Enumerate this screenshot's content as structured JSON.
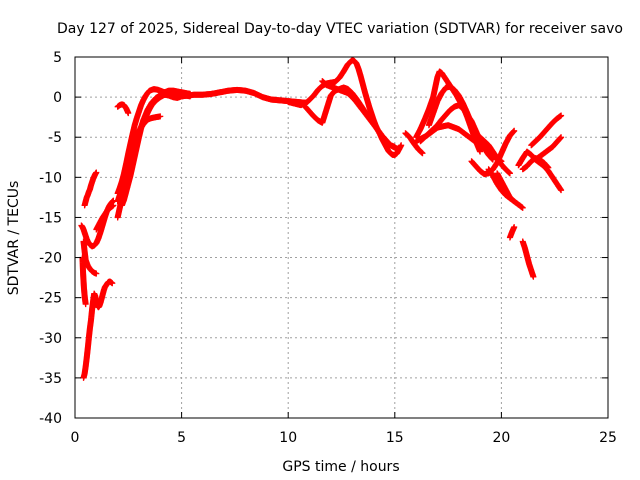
{
  "chart_data": {
    "type": "scatter",
    "title": "Day 127 of 2025, Sidereal Day-to-day VTEC variation (SDTVAR) for receiver savo",
    "xlabel": "GPS time / hours",
    "ylabel": "SDTVAR / TECUs",
    "xlim": [
      0,
      25
    ],
    "ylim": [
      -40,
      5
    ],
    "xticks": [
      0,
      5,
      10,
      15,
      20,
      25
    ],
    "yticks": [
      5,
      0,
      -5,
      -10,
      -15,
      -20,
      -25,
      -30,
      -35,
      -40
    ],
    "grid": true,
    "marker": "+",
    "color": "#ff0000",
    "series": [
      {
        "name": "trace-1",
        "x": [
          0.4,
          0.45,
          0.5,
          0.55,
          0.6,
          0.65,
          0.7,
          0.75,
          0.8,
          0.85,
          0.9,
          0.95,
          1.0,
          1.05,
          1.1,
          1.15,
          1.2,
          1.25,
          1.3,
          1.35,
          1.4,
          1.45,
          1.5,
          1.55,
          1.6,
          1.65,
          1.7,
          1.75
        ],
        "y": [
          -35.0,
          -34.5,
          -33.6,
          -32.5,
          -31.3,
          -30.0,
          -28.8,
          -27.8,
          -26.5,
          -25.4,
          -24.5,
          -24.8,
          -25.6,
          -26.0,
          -26.2,
          -26.0,
          -25.6,
          -25.1,
          -24.6,
          -24.1,
          -23.7,
          -23.5,
          -23.3,
          -23.1,
          -23.0,
          -23.0,
          -23.1,
          -23.2
        ]
      },
      {
        "name": "trace-2",
        "x": [
          0.35,
          0.38,
          0.42,
          0.46,
          0.5
        ],
        "y": [
          -20.0,
          -22.0,
          -23.8,
          -25.0,
          -25.8
        ]
      },
      {
        "name": "trace-3",
        "x": [
          0.4,
          0.45,
          0.5,
          0.6,
          0.7,
          0.8,
          0.9,
          1.0
        ],
        "y": [
          -18.0,
          -19.2,
          -20.3,
          -21.0,
          -21.4,
          -21.7,
          -21.9,
          -22.0
        ]
      },
      {
        "name": "trace-4",
        "x": [
          0.3,
          0.35,
          0.4,
          0.45,
          0.5,
          0.55,
          0.6,
          0.7,
          0.8,
          0.9,
          1.0,
          1.1,
          1.2,
          1.3,
          1.4,
          1.5,
          1.6,
          1.7,
          1.8
        ],
        "y": [
          -16.0,
          -16.2,
          -16.5,
          -16.9,
          -17.3,
          -17.7,
          -18.0,
          -18.4,
          -18.6,
          -18.5,
          -18.2,
          -17.6,
          -16.8,
          -15.9,
          -15.0,
          -14.2,
          -13.6,
          -13.2,
          -12.9
        ]
      },
      {
        "name": "trace-5",
        "x": [
          0.45,
          0.5,
          0.55,
          0.6,
          0.65,
          0.7,
          0.75,
          0.8,
          0.85,
          0.9,
          0.95,
          1.0
        ],
        "y": [
          -13.5,
          -13.0,
          -12.5,
          -12.2,
          -11.8,
          -11.5,
          -11.0,
          -10.6,
          -10.2,
          -9.9,
          -9.6,
          -9.4
        ]
      },
      {
        "name": "trace-6",
        "x": [
          1.0,
          1.1,
          1.2,
          1.3,
          1.4,
          1.5,
          1.6,
          1.7,
          1.8
        ],
        "y": [
          -16.5,
          -16.0,
          -15.5,
          -15.0,
          -14.6,
          -14.2,
          -13.9,
          -13.7,
          -13.5
        ]
      },
      {
        "name": "trace-7",
        "x": [
          2.0,
          2.1,
          2.2,
          2.3,
          2.4,
          2.5,
          2.6,
          2.7,
          2.8,
          2.9,
          3.0,
          3.1,
          3.2,
          3.3,
          3.4,
          3.5,
          3.7,
          3.9,
          4.1,
          4.3,
          4.5,
          4.7,
          5.0,
          5.3,
          5.6,
          6.0,
          6.4,
          6.8,
          7.2,
          7.6,
          8.0,
          8.4,
          8.8,
          9.2,
          9.6,
          10.0,
          10.4,
          10.8
        ],
        "y": [
          -12.0,
          -11.3,
          -10.5,
          -9.5,
          -8.3,
          -7.0,
          -5.8,
          -4.6,
          -3.5,
          -2.6,
          -1.8,
          -1.0,
          -0.4,
          0.1,
          0.5,
          0.8,
          1.0,
          0.9,
          0.7,
          0.5,
          0.3,
          0.2,
          0.1,
          0.2,
          0.3,
          0.3,
          0.4,
          0.6,
          0.8,
          0.9,
          0.8,
          0.5,
          0.0,
          -0.3,
          -0.4,
          -0.5,
          -0.6,
          -0.7
        ]
      },
      {
        "name": "trace-8",
        "x": [
          2.2,
          2.3,
          2.4,
          2.5,
          2.6,
          2.7,
          2.8,
          2.9,
          3.0,
          3.1,
          3.2,
          3.4,
          3.6,
          3.8,
          4.0,
          4.2,
          4.4,
          4.6,
          4.8,
          5.0,
          5.2,
          5.4
        ],
        "y": [
          -13.5,
          -12.8,
          -11.8,
          -10.8,
          -9.8,
          -8.6,
          -7.4,
          -6.2,
          -5.0,
          -3.9,
          -2.9,
          -1.6,
          -0.7,
          -0.1,
          0.2,
          0.3,
          0.2,
          0.0,
          -0.1,
          0.1,
          0.2,
          0.1
        ]
      },
      {
        "name": "trace-9",
        "x": [
          2.0,
          2.1,
          2.2,
          2.3,
          2.4,
          2.5,
          2.6,
          2.7,
          2.8,
          3.0,
          3.2,
          3.4,
          3.6,
          3.8,
          4.0,
          4.2,
          4.4,
          4.6,
          4.8,
          5.0,
          5.2,
          5.4
        ],
        "y": [
          -13.0,
          -12.2,
          -11.4,
          -10.5,
          -9.6,
          -8.8,
          -7.9,
          -7.0,
          -6.0,
          -4.4,
          -3.0,
          -1.9,
          -1.0,
          -0.4,
          0.0,
          0.3,
          0.4,
          0.4,
          0.3,
          0.2,
          0.2,
          0.2
        ]
      },
      {
        "name": "trace-10",
        "x": [
          2.3,
          2.4,
          2.5,
          2.6,
          2.7,
          2.8,
          2.9,
          3.0,
          3.1,
          3.2,
          3.3,
          3.4,
          3.5,
          3.6,
          3.8,
          4.0,
          4.2,
          4.4,
          4.6,
          4.8,
          5.0,
          5.2,
          5.4
        ],
        "y": [
          -10.5,
          -9.5,
          -8.5,
          -7.6,
          -6.6,
          -5.8,
          -5.0,
          -4.4,
          -3.8,
          -3.2,
          -2.6,
          -2.0,
          -1.4,
          -0.8,
          -0.2,
          0.3,
          0.6,
          0.8,
          0.8,
          0.7,
          0.6,
          0.5,
          0.4
        ]
      },
      {
        "name": "trace-11",
        "x": [
          2.0,
          2.1,
          2.2,
          2.3,
          2.4,
          2.5,
          2.6,
          2.7,
          2.8,
          2.9,
          3.0,
          3.2,
          3.4,
          3.6,
          3.8,
          4.0
        ],
        "y": [
          -15.0,
          -13.8,
          -12.6,
          -11.5,
          -10.2,
          -9.0,
          -7.8,
          -6.6,
          -5.6,
          -4.8,
          -4.2,
          -3.4,
          -2.8,
          -2.6,
          -2.5,
          -2.4
        ]
      },
      {
        "name": "trace-12",
        "x": [
          2.0,
          2.1,
          2.2,
          2.3,
          2.4,
          2.5
        ],
        "y": [
          -1.2,
          -1.0,
          -0.9,
          -1.0,
          -1.4,
          -2.0
        ]
      },
      {
        "name": "trace-13",
        "x": [
          10.0,
          10.3,
          10.6,
          10.9,
          11.2,
          11.4,
          11.6,
          11.8,
          12.0,
          12.2,
          12.4,
          12.6,
          12.8,
          13.0,
          13.1,
          13.2,
          13.3,
          13.4,
          13.5,
          13.6,
          13.7,
          13.8,
          13.9,
          14.0,
          14.1,
          14.2,
          14.3,
          14.4,
          14.5,
          14.6,
          14.7,
          14.8,
          14.9,
          15.0,
          15.1,
          15.2,
          15.3
        ],
        "y": [
          -0.6,
          -0.8,
          -1.0,
          -0.6,
          0.2,
          0.9,
          1.4,
          1.7,
          1.8,
          1.9,
          2.4,
          3.2,
          4.1,
          4.6,
          4.5,
          4.2,
          3.5,
          2.6,
          1.6,
          0.6,
          -0.3,
          -1.2,
          -2.0,
          -2.8,
          -3.5,
          -4.1,
          -4.6,
          -5.2,
          -5.7,
          -6.2,
          -6.7,
          -7.0,
          -7.2,
          -7.2,
          -7.0,
          -6.5,
          -6.0
        ]
      },
      {
        "name": "trace-14",
        "x": [
          10.8,
          11.0,
          11.2,
          11.4,
          11.6,
          11.8,
          12.0,
          12.2,
          12.4,
          12.6,
          12.8,
          13.0,
          13.2,
          13.4,
          13.6,
          13.8,
          14.0,
          14.2,
          14.4,
          14.6,
          14.8,
          15.0
        ],
        "y": [
          -1.2,
          -1.8,
          -2.4,
          -2.9,
          -3.2,
          -1.5,
          0.2,
          0.8,
          1.0,
          1.2,
          1.0,
          0.5,
          -0.2,
          -1.0,
          -1.8,
          -2.5,
          -3.3,
          -4.1,
          -4.8,
          -5.5,
          -6.0,
          -6.2
        ]
      },
      {
        "name": "trace-15",
        "x": [
          11.6,
          11.8,
          12.0,
          12.2,
          12.4,
          12.6,
          12.8,
          13.0,
          13.2,
          13.4,
          13.6,
          13.8,
          14.0,
          14.2,
          14.4,
          14.6,
          14.8,
          15.0,
          15.2
        ],
        "y": [
          2.0,
          1.5,
          1.3,
          1.1,
          0.9,
          0.7,
          0.5,
          0.0,
          -0.6,
          -1.3,
          -2.0,
          -2.7,
          -3.4,
          -4.1,
          -4.8,
          -5.4,
          -6.0,
          -6.3,
          -6.5
        ]
      },
      {
        "name": "trace-16",
        "x": [
          15.5,
          15.7,
          15.9,
          16.1,
          16.3
        ],
        "y": [
          -4.5,
          -5.0,
          -5.8,
          -6.5,
          -7.0
        ]
      },
      {
        "name": "trace-17",
        "x": [
          16.0,
          16.2,
          16.4,
          16.6,
          16.8,
          17.0,
          17.1,
          17.2,
          17.3,
          17.4,
          17.5,
          17.6,
          17.7,
          17.8,
          17.9,
          18.0,
          18.2,
          18.4,
          18.6,
          18.8,
          19.0
        ],
        "y": [
          -5.0,
          -4.0,
          -2.8,
          -1.5,
          0.0,
          2.5,
          3.2,
          3.0,
          2.6,
          2.2,
          1.8,
          1.4,
          1.0,
          0.6,
          0.2,
          -0.3,
          -1.2,
          -2.5,
          -4.0,
          -5.5,
          -6.8
        ]
      },
      {
        "name": "trace-18",
        "x": [
          16.6,
          16.8,
          17.0,
          17.2,
          17.4,
          17.6,
          17.8,
          18.0,
          18.2,
          18.4,
          18.6,
          18.8,
          19.0,
          19.2,
          19.4
        ],
        "y": [
          -3.5,
          -2.0,
          -0.5,
          0.5,
          1.2,
          1.3,
          0.9,
          0.2,
          -0.8,
          -2.0,
          -3.3,
          -4.6,
          -5.6,
          -6.3,
          -6.8
        ]
      },
      {
        "name": "trace-19",
        "x": [
          16.2,
          16.4,
          16.6,
          16.8,
          17.0,
          17.2,
          17.4,
          17.6,
          17.8,
          18.0,
          18.2,
          18.4,
          18.6,
          18.8,
          19.0,
          19.2,
          19.4,
          19.6
        ],
        "y": [
          -5.5,
          -5.0,
          -4.5,
          -4.0,
          -3.5,
          -2.8,
          -2.2,
          -1.6,
          -1.2,
          -1.0,
          -1.4,
          -2.2,
          -3.0,
          -4.2,
          -5.4,
          -6.4,
          -7.2,
          -7.8
        ]
      },
      {
        "name": "trace-20",
        "x": [
          16.0,
          16.5,
          17.0,
          17.5,
          18.0,
          18.5,
          19.0,
          19.5,
          20.0
        ],
        "y": [
          -5.5,
          -4.8,
          -3.8,
          -3.5,
          -4.0,
          -5.0,
          -6.0,
          -7.0,
          -8.0
        ]
      },
      {
        "name": "trace-21",
        "x": [
          18.6,
          18.8,
          19.0,
          19.2,
          19.4,
          19.6,
          19.8,
          20.0,
          20.2,
          20.4,
          20.6
        ],
        "y": [
          -8.0,
          -8.6,
          -9.2,
          -9.6,
          -9.5,
          -9.0,
          -8.2,
          -7.0,
          -5.8,
          -4.8,
          -4.2
        ]
      },
      {
        "name": "trace-22",
        "x": [
          19.0,
          19.2,
          19.4,
          19.6,
          19.8,
          20.0,
          20.2,
          20.4
        ],
        "y": [
          -5.0,
          -5.5,
          -6.0,
          -6.8,
          -7.6,
          -8.4,
          -9.0,
          -9.5
        ]
      },
      {
        "name": "trace-23",
        "x": [
          19.4,
          19.6,
          19.8,
          20.0,
          20.2,
          20.4,
          20.6,
          20.8,
          21.0
        ],
        "y": [
          -9.0,
          -9.8,
          -10.8,
          -11.6,
          -12.2,
          -12.6,
          -13.0,
          -13.4,
          -13.8
        ]
      },
      {
        "name": "trace-24",
        "x": [
          20.4,
          20.5,
          20.6
        ],
        "y": [
          -17.5,
          -16.8,
          -16.2
        ]
      },
      {
        "name": "trace-25",
        "x": [
          21.0,
          21.1,
          21.2,
          21.3,
          21.4,
          21.5
        ],
        "y": [
          -18.0,
          -18.8,
          -19.8,
          -20.8,
          -21.6,
          -22.4
        ]
      },
      {
        "name": "trace-26",
        "x": [
          21.4,
          21.6,
          21.8,
          22.0,
          22.2,
          22.4,
          22.6,
          22.8
        ],
        "y": [
          -6.0,
          -5.5,
          -5.0,
          -4.4,
          -3.8,
          -3.2,
          -2.7,
          -2.3
        ]
      },
      {
        "name": "trace-27",
        "x": [
          21.6,
          21.8,
          22.0,
          22.2,
          22.4,
          22.6,
          22.8
        ],
        "y": [
          -7.8,
          -7.4,
          -7.0,
          -6.6,
          -6.2,
          -5.6,
          -5.0
        ]
      },
      {
        "name": "trace-28",
        "x": [
          20.8,
          21.0,
          21.2,
          21.4,
          21.6,
          21.8,
          22.0,
          22.2,
          22.4,
          22.6,
          22.8
        ],
        "y": [
          -8.5,
          -7.6,
          -6.8,
          -7.2,
          -7.8,
          -8.2,
          -8.6,
          -9.2,
          -10.0,
          -10.8,
          -11.6
        ]
      },
      {
        "name": "trace-29",
        "x": [
          21.0,
          21.2,
          21.4,
          21.6,
          21.8,
          22.0,
          22.2
        ],
        "y": [
          -9.0,
          -8.6,
          -8.0,
          -7.6,
          -7.8,
          -8.2,
          -8.8
        ]
      },
      {
        "name": "trace-30",
        "x": [
          19.8,
          20.0,
          20.2,
          20.4,
          20.6
        ],
        "y": [
          -9.5,
          -10.5,
          -11.5,
          -12.5,
          -13.0
        ]
      }
    ]
  }
}
